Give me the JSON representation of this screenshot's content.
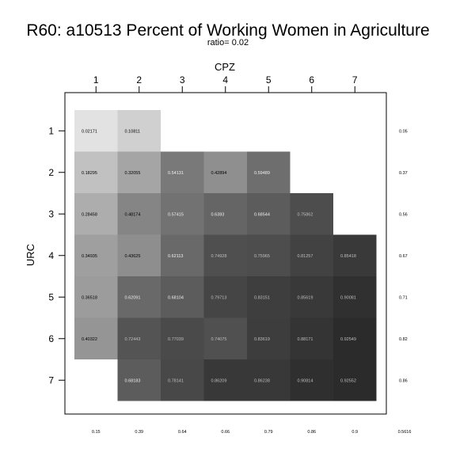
{
  "chart_data": {
    "type": "heatmap",
    "title": "R60: a10513 Percent of Working Women in Agriculture",
    "subtitle": "ratio= 0.02",
    "xlabel": "CPZ",
    "ylabel": "URC",
    "x_categories": [
      "1",
      "2",
      "3",
      "4",
      "5",
      "6",
      "7"
    ],
    "y_categories": [
      "1",
      "2",
      "3",
      "4",
      "5",
      "6",
      "7"
    ],
    "cells": [
      {
        "x": "1",
        "y": "1",
        "value": 0.02171,
        "label": "0.02171"
      },
      {
        "x": "2",
        "y": "1",
        "value": 0.10811,
        "label": "0.10811"
      },
      {
        "x": "1",
        "y": "2",
        "value": 0.18295,
        "label": "0.18295"
      },
      {
        "x": "2",
        "y": "2",
        "value": 0.32055,
        "label": "0.32055"
      },
      {
        "x": "3",
        "y": "2",
        "value": 0.54131,
        "label": "0.54131"
      },
      {
        "x": "4",
        "y": "2",
        "value": 0.42894,
        "label": "0.42894"
      },
      {
        "x": "5",
        "y": "2",
        "value": 0.59489,
        "label": "0.59489"
      },
      {
        "x": "1",
        "y": "3",
        "value": 0.28458,
        "label": "0.28458"
      },
      {
        "x": "2",
        "y": "3",
        "value": 0.48174,
        "label": "0.48174"
      },
      {
        "x": "3",
        "y": "3",
        "value": 0.57415,
        "label": "0.57415"
      },
      {
        "x": "4",
        "y": "3",
        "value": 0.6383,
        "label": "0.6383"
      },
      {
        "x": "5",
        "y": "3",
        "value": 0.68544,
        "label": "0.68544"
      },
      {
        "x": "6",
        "y": "3",
        "value": 0.75862,
        "label": "0.75862"
      },
      {
        "x": "1",
        "y": "4",
        "value": 0.34935,
        "label": "0.34935"
      },
      {
        "x": "2",
        "y": "4",
        "value": 0.43625,
        "label": "0.43625"
      },
      {
        "x": "3",
        "y": "4",
        "value": 0.62113,
        "label": "0.62113"
      },
      {
        "x": "4",
        "y": "4",
        "value": 0.74928,
        "label": "0.74928"
      },
      {
        "x": "5",
        "y": "4",
        "value": 0.75965,
        "label": "0.75965"
      },
      {
        "x": "6",
        "y": "4",
        "value": 0.81257,
        "label": "0.81257"
      },
      {
        "x": "7",
        "y": "4",
        "value": 0.85418,
        "label": "0.85418"
      },
      {
        "x": "1",
        "y": "5",
        "value": 0.36518,
        "label": "0.36518"
      },
      {
        "x": "2",
        "y": "5",
        "value": 0.62091,
        "label": "0.62091"
      },
      {
        "x": "3",
        "y": "5",
        "value": 0.68104,
        "label": "0.68104"
      },
      {
        "x": "4",
        "y": "5",
        "value": 0.79713,
        "label": "0.79713"
      },
      {
        "x": "5",
        "y": "5",
        "value": 0.83151,
        "label": "0.83151"
      },
      {
        "x": "6",
        "y": "5",
        "value": 0.85619,
        "label": "0.85619"
      },
      {
        "x": "7",
        "y": "5",
        "value": 0.90081,
        "label": "0.90081"
      },
      {
        "x": "1",
        "y": "6",
        "value": 0.40322,
        "label": "0.40322"
      },
      {
        "x": "2",
        "y": "6",
        "value": 0.72443,
        "label": "0.72443"
      },
      {
        "x": "3",
        "y": "6",
        "value": 0.77039,
        "label": "0.77039"
      },
      {
        "x": "4",
        "y": "6",
        "value": 0.74075,
        "label": "0.74075"
      },
      {
        "x": "5",
        "y": "6",
        "value": 0.83619,
        "label": "0.83619"
      },
      {
        "x": "6",
        "y": "6",
        "value": 0.88171,
        "label": "0.88171"
      },
      {
        "x": "7",
        "y": "6",
        "value": 0.92549,
        "label": "0.92549"
      },
      {
        "x": "2",
        "y": "7",
        "value": 0.68183,
        "label": "0.68183"
      },
      {
        "x": "3",
        "y": "7",
        "value": 0.78141,
        "label": "0.78141"
      },
      {
        "x": "4",
        "y": "7",
        "value": 0.86209,
        "label": "0.86209"
      },
      {
        "x": "5",
        "y": "7",
        "value": 0.86238,
        "label": "0.86238"
      },
      {
        "x": "6",
        "y": "7",
        "value": 0.90814,
        "label": "0.90814"
      },
      {
        "x": "7",
        "y": "7",
        "value": 0.92552,
        "label": "0.92552"
      }
    ],
    "row_margins": [
      "0.05",
      "0.37",
      "0.56",
      "0.67",
      "0.71",
      "0.82",
      "0.86"
    ],
    "column_margins": [
      "0.15",
      "0.39",
      "0.64",
      "0.66",
      "0.79",
      "0.86",
      "0.9"
    ],
    "grand_margin": "0.5616",
    "color_scale": {
      "low": "#e6e6e6",
      "high": "#1c1c1c"
    },
    "grid": false,
    "legend": "none"
  }
}
